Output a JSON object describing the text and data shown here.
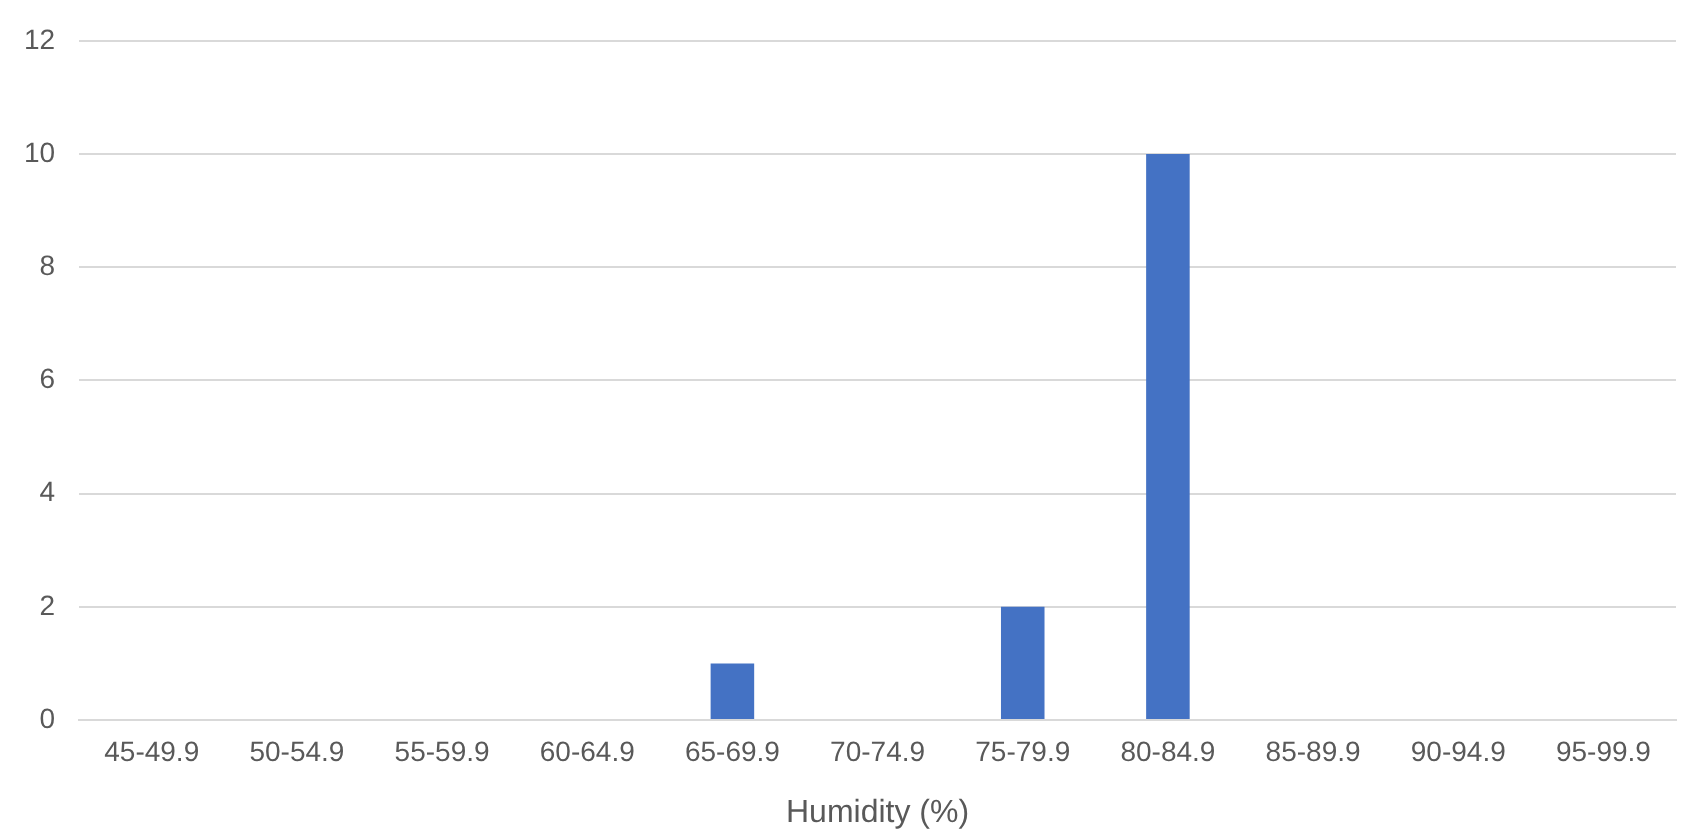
{
  "chart_data": {
    "type": "bar",
    "xlabel": "Humidity (%)",
    "categories": [
      "45-49.9",
      "50-54.9",
      "55-59.9",
      "60-64.9",
      "65-69.9",
      "70-74.9",
      "75-79.9",
      "80-84.9",
      "85-89.9",
      "90-94.9",
      "95-99.9"
    ],
    "values": [
      0,
      0,
      0,
      0,
      1,
      0,
      2,
      10,
      0,
      0,
      0
    ],
    "color": "#4472c4",
    "ylim": [
      0,
      12
    ],
    "yticks": [
      0,
      2,
      4,
      6,
      8,
      10,
      12
    ],
    "grid": "y",
    "legend": false
  }
}
